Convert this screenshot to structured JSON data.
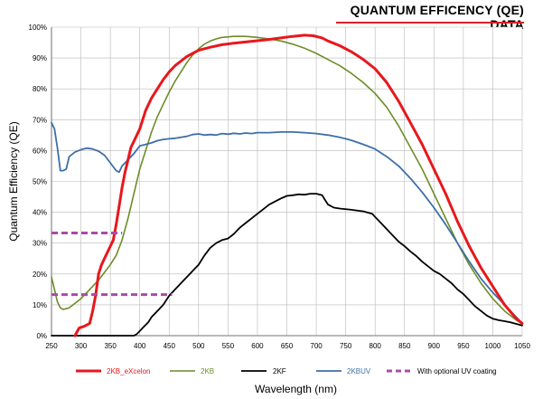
{
  "header": {
    "title": "QUANTUM EFFICENCY (QE) DATA",
    "rule_color": "#d62128"
  },
  "chart_data": {
    "type": "line",
    "title": "QUANTUM EFFICENCY (QE) DATA",
    "xlabel": "Wavelength (nm)",
    "ylabel": "Quantum Efficiency (QE)",
    "xlim": [
      250,
      1050
    ],
    "ylim": [
      0,
      100
    ],
    "grid": true,
    "legend_position": "bottom",
    "x_ticks": [
      250,
      300,
      350,
      400,
      450,
      500,
      550,
      600,
      650,
      700,
      750,
      800,
      850,
      900,
      950,
      1000,
      1050
    ],
    "x_tick_labels": [
      "250",
      "300",
      "350",
      "400",
      "450",
      "500",
      "550",
      "600",
      "650",
      "700",
      "750",
      "800",
      "850",
      "900",
      "950",
      "1000",
      "1050"
    ],
    "y_ticks": [
      0,
      10,
      20,
      30,
      40,
      50,
      60,
      70,
      80,
      90,
      100
    ],
    "y_tick_labels": [
      "0%",
      "10%",
      "20%",
      "30%",
      "40%",
      "50%",
      "60%",
      "70%",
      "80%",
      "90%",
      "100%"
    ],
    "series": [
      {
        "name": "2KB_eXcelon",
        "color": "#e8171c",
        "style": "solid",
        "width": 3,
        "points": [
          [
            290,
            0
          ],
          [
            297,
            2.5
          ],
          [
            305,
            3
          ],
          [
            315,
            4
          ],
          [
            320,
            8
          ],
          [
            325,
            13
          ],
          [
            330,
            20
          ],
          [
            335,
            23
          ],
          [
            340,
            25
          ],
          [
            345,
            27
          ],
          [
            350,
            29
          ],
          [
            355,
            31
          ],
          [
            360,
            36
          ],
          [
            365,
            42
          ],
          [
            370,
            48
          ],
          [
            375,
            53
          ],
          [
            380,
            57
          ],
          [
            385,
            61
          ],
          [
            390,
            63
          ],
          [
            400,
            67
          ],
          [
            410,
            73
          ],
          [
            420,
            77
          ],
          [
            430,
            80
          ],
          [
            440,
            83
          ],
          [
            450,
            85.5
          ],
          [
            460,
            87.5
          ],
          [
            470,
            89
          ],
          [
            480,
            90.5
          ],
          [
            490,
            91.5
          ],
          [
            500,
            92.5
          ],
          [
            520,
            93.5
          ],
          [
            540,
            94.3
          ],
          [
            560,
            94.8
          ],
          [
            580,
            95.2
          ],
          [
            600,
            95.6
          ],
          [
            620,
            96
          ],
          [
            640,
            96.5
          ],
          [
            660,
            97
          ],
          [
            680,
            97.4
          ],
          [
            695,
            97.2
          ],
          [
            710,
            96.5
          ],
          [
            720,
            95.5
          ],
          [
            740,
            94
          ],
          [
            760,
            92
          ],
          [
            780,
            89.5
          ],
          [
            800,
            86.5
          ],
          [
            820,
            82
          ],
          [
            840,
            76
          ],
          [
            860,
            69
          ],
          [
            880,
            62
          ],
          [
            900,
            54
          ],
          [
            920,
            46
          ],
          [
            940,
            37
          ],
          [
            960,
            29
          ],
          [
            980,
            22
          ],
          [
            1000,
            16
          ],
          [
            1020,
            10
          ],
          [
            1040,
            5.5
          ],
          [
            1050,
            4
          ]
        ]
      },
      {
        "name": "2KB",
        "color": "#6e8c27",
        "style": "solid",
        "width": 1.6,
        "points": [
          [
            250,
            19
          ],
          [
            255,
            15
          ],
          [
            260,
            11
          ],
          [
            265,
            9
          ],
          [
            270,
            8.5
          ],
          [
            280,
            9
          ],
          [
            290,
            10.5
          ],
          [
            300,
            12
          ],
          [
            310,
            14
          ],
          [
            320,
            16
          ],
          [
            330,
            18
          ],
          [
            340,
            20.5
          ],
          [
            350,
            23
          ],
          [
            360,
            26
          ],
          [
            370,
            31
          ],
          [
            380,
            38
          ],
          [
            390,
            46
          ],
          [
            400,
            54
          ],
          [
            410,
            60
          ],
          [
            420,
            66
          ],
          [
            430,
            71
          ],
          [
            440,
            75
          ],
          [
            450,
            79
          ],
          [
            460,
            82.5
          ],
          [
            470,
            85.5
          ],
          [
            480,
            88.5
          ],
          [
            490,
            91
          ],
          [
            500,
            93
          ],
          [
            510,
            94.5
          ],
          [
            520,
            95.5
          ],
          [
            530,
            96.2
          ],
          [
            540,
            96.7
          ],
          [
            560,
            97
          ],
          [
            580,
            97
          ],
          [
            600,
            96.7
          ],
          [
            620,
            96.2
          ],
          [
            640,
            95.5
          ],
          [
            660,
            94.5
          ],
          [
            680,
            93.2
          ],
          [
            700,
            91.5
          ],
          [
            720,
            89.5
          ],
          [
            740,
            87.5
          ],
          [
            760,
            85
          ],
          [
            780,
            82
          ],
          [
            800,
            78.5
          ],
          [
            820,
            74
          ],
          [
            840,
            68
          ],
          [
            860,
            61
          ],
          [
            880,
            54
          ],
          [
            900,
            46
          ],
          [
            920,
            38
          ],
          [
            940,
            30
          ],
          [
            960,
            23
          ],
          [
            980,
            17
          ],
          [
            1000,
            12
          ],
          [
            1020,
            8
          ],
          [
            1040,
            5
          ],
          [
            1050,
            4
          ]
        ]
      },
      {
        "name": "2KF",
        "color": "#000000",
        "style": "solid",
        "width": 1.8,
        "points": [
          [
            250,
            0
          ],
          [
            390,
            0
          ],
          [
            395,
            0.5
          ],
          [
            400,
            1.5
          ],
          [
            405,
            2.5
          ],
          [
            410,
            3.5
          ],
          [
            415,
            4.5
          ],
          [
            420,
            6
          ],
          [
            430,
            8
          ],
          [
            440,
            10
          ],
          [
            450,
            13
          ],
          [
            460,
            15
          ],
          [
            470,
            17
          ],
          [
            480,
            19
          ],
          [
            490,
            21
          ],
          [
            500,
            23
          ],
          [
            510,
            26
          ],
          [
            520,
            28.5
          ],
          [
            530,
            30
          ],
          [
            540,
            31
          ],
          [
            550,
            31.5
          ],
          [
            560,
            33
          ],
          [
            570,
            35
          ],
          [
            580,
            36.5
          ],
          [
            590,
            38
          ],
          [
            600,
            39.5
          ],
          [
            610,
            41
          ],
          [
            620,
            42.5
          ],
          [
            630,
            43.5
          ],
          [
            640,
            44.5
          ],
          [
            650,
            45.3
          ],
          [
            660,
            45.5
          ],
          [
            670,
            45.8
          ],
          [
            680,
            45.7
          ],
          [
            690,
            46
          ],
          [
            700,
            46
          ],
          [
            710,
            45.5
          ],
          [
            715,
            44
          ],
          [
            720,
            42.5
          ],
          [
            730,
            41.5
          ],
          [
            740,
            41.2
          ],
          [
            760,
            40.8
          ],
          [
            780,
            40.3
          ],
          [
            795,
            39.5
          ],
          [
            800,
            38.5
          ],
          [
            810,
            36.5
          ],
          [
            820,
            34.5
          ],
          [
            830,
            32.5
          ],
          [
            840,
            30.5
          ],
          [
            850,
            29
          ],
          [
            860,
            27.3
          ],
          [
            870,
            25.8
          ],
          [
            880,
            24
          ],
          [
            890,
            22.5
          ],
          [
            900,
            21
          ],
          [
            910,
            20
          ],
          [
            920,
            18.5
          ],
          [
            930,
            17
          ],
          [
            940,
            15
          ],
          [
            950,
            13.5
          ],
          [
            960,
            11.5
          ],
          [
            970,
            9.5
          ],
          [
            980,
            8
          ],
          [
            990,
            6.5
          ],
          [
            1000,
            5.5
          ],
          [
            1010,
            5
          ],
          [
            1020,
            4.7
          ],
          [
            1030,
            4.3
          ],
          [
            1040,
            3.8
          ],
          [
            1050,
            3.3
          ]
        ]
      },
      {
        "name": "2KBUV",
        "color": "#3d6fa8",
        "style": "solid",
        "width": 1.8,
        "points": [
          [
            250,
            69
          ],
          [
            255,
            67
          ],
          [
            260,
            61
          ],
          [
            265,
            53.5
          ],
          [
            270,
            53.5
          ],
          [
            275,
            54
          ],
          [
            280,
            58
          ],
          [
            290,
            59.5
          ],
          [
            300,
            60.3
          ],
          [
            310,
            60.8
          ],
          [
            320,
            60.5
          ],
          [
            330,
            59.8
          ],
          [
            340,
            58.5
          ],
          [
            350,
            56
          ],
          [
            360,
            53.5
          ],
          [
            365,
            53
          ],
          [
            370,
            55
          ],
          [
            380,
            57
          ],
          [
            390,
            59
          ],
          [
            400,
            61.5
          ],
          [
            410,
            62
          ],
          [
            420,
            62.5
          ],
          [
            430,
            63.2
          ],
          [
            440,
            63.6
          ],
          [
            450,
            63.8
          ],
          [
            460,
            64
          ],
          [
            470,
            64.3
          ],
          [
            480,
            64.6
          ],
          [
            490,
            65.2
          ],
          [
            500,
            65.4
          ],
          [
            510,
            65
          ],
          [
            520,
            65.2
          ],
          [
            530,
            65
          ],
          [
            540,
            65.5
          ],
          [
            550,
            65.3
          ],
          [
            560,
            65.6
          ],
          [
            570,
            65.4
          ],
          [
            580,
            65.7
          ],
          [
            590,
            65.5
          ],
          [
            600,
            65.8
          ],
          [
            620,
            65.8
          ],
          [
            640,
            66
          ],
          [
            660,
            66
          ],
          [
            680,
            65.8
          ],
          [
            700,
            65.5
          ],
          [
            720,
            65
          ],
          [
            740,
            64.3
          ],
          [
            760,
            63.3
          ],
          [
            780,
            62
          ],
          [
            800,
            60.5
          ],
          [
            820,
            58
          ],
          [
            840,
            55
          ],
          [
            860,
            51
          ],
          [
            880,
            46.5
          ],
          [
            900,
            41.5
          ],
          [
            920,
            36
          ],
          [
            940,
            30
          ],
          [
            960,
            24
          ],
          [
            980,
            18.5
          ],
          [
            1000,
            14
          ],
          [
            1020,
            10
          ],
          [
            1040,
            6
          ],
          [
            1050,
            4
          ]
        ]
      },
      {
        "name": "With optional UV coating",
        "color": "#a64ca6",
        "style": "dashed",
        "width": 3,
        "segments": [
          {
            "x": [
              250,
              370
            ],
            "y": 33.3
          },
          {
            "x": [
              250,
              455
            ],
            "y": 13.3
          }
        ]
      }
    ]
  }
}
